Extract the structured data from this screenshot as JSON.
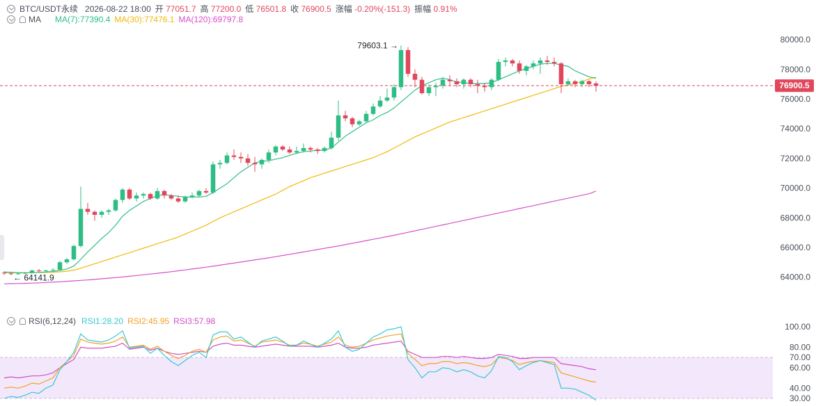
{
  "header": {
    "symbol": "BTC/USDT永续",
    "datetime": "2026-08-22 18:00",
    "open_label": "开",
    "open": "77051.7",
    "high_label": "高",
    "high": "77200.0",
    "low_label": "低",
    "low": "76501.8",
    "close_label": "收",
    "close": "76900.5",
    "change_label": "涨幅",
    "change": "-0.20%(-151.3)",
    "amp_label": "振幅",
    "amp": "0.91%"
  },
  "ma_legend": {
    "label": "MA",
    "ma7": "MA(7):77390.4",
    "ma30": "MA(30):77476.1",
    "ma120": "MA(120):69797.8"
  },
  "rsi_legend": {
    "label": "RSI(6,12,24)",
    "rsi1": "RSI1:28.20",
    "rsi2": "RSI2:45.95",
    "rsi3": "RSI3:57.98"
  },
  "colors": {
    "up": "#2ebd85",
    "down": "#e0475b",
    "ma7": "#2ebd85",
    "ma30": "#f0b90b",
    "ma120": "#d64fc9",
    "rsi1": "#34c9d1",
    "rsi2": "#f0a028",
    "rsi3": "#cf4fc4",
    "band": "#f3e8fb",
    "last_price_bg": "#e0475b"
  },
  "chart_data": [
    {
      "type": "candlestick",
      "ylim": [
        63000,
        80800
      ],
      "yticks": [
        "80000.0",
        "78000.0",
        "76000.0",
        "74000.0",
        "72000.0",
        "70000.0",
        "68000.0",
        "66000.0",
        "64000.0"
      ],
      "last_price": "76900.5",
      "annotations": {
        "high": "79603.1",
        "low": "64141.9"
      },
      "ohlc": [
        [
          64300,
          64400,
          64150,
          64250
        ],
        [
          64250,
          64350,
          64141.9,
          64200
        ],
        [
          64200,
          64300,
          64150,
          64250
        ],
        [
          64250,
          64350,
          64180,
          64300
        ],
        [
          64300,
          64500,
          64250,
          64450
        ],
        [
          64450,
          64550,
          64350,
          64400
        ],
        [
          64400,
          64500,
          64300,
          64450
        ],
        [
          64450,
          64600,
          64400,
          64500
        ],
        [
          64500,
          65100,
          64450,
          65000
        ],
        [
          65000,
          65300,
          64900,
          65200
        ],
        [
          65200,
          66200,
          65100,
          66100
        ],
        [
          66100,
          70100,
          66000,
          68600
        ],
        [
          68600,
          69000,
          68200,
          68400
        ],
        [
          68400,
          68500,
          67800,
          68200
        ],
        [
          68200,
          68500,
          68000,
          68400
        ],
        [
          68400,
          68600,
          68200,
          68500
        ],
        [
          68500,
          69300,
          68400,
          69200
        ],
        [
          69200,
          70000,
          69000,
          69900
        ],
        [
          69900,
          70000,
          69200,
          69300
        ],
        [
          69300,
          69700,
          69100,
          69500
        ],
        [
          69500,
          69700,
          69300,
          69600
        ],
        [
          69600,
          69700,
          69200,
          69300
        ],
        [
          69300,
          70000,
          69200,
          69800
        ],
        [
          69800,
          69900,
          69300,
          69500
        ],
        [
          69500,
          69600,
          69200,
          69300
        ],
        [
          69300,
          69500,
          69000,
          69100
        ],
        [
          69100,
          69500,
          69000,
          69400
        ],
        [
          69400,
          69700,
          69300,
          69500
        ],
        [
          69500,
          69900,
          69400,
          69800
        ],
        [
          69800,
          70000,
          69600,
          69700
        ],
        [
          69700,
          71800,
          69600,
          71600
        ],
        [
          71600,
          71900,
          71300,
          71700
        ],
        [
          71700,
          72400,
          71600,
          72200
        ],
        [
          72200,
          72600,
          71900,
          72100
        ],
        [
          72100,
          72400,
          71700,
          72000
        ],
        [
          72000,
          72300,
          71500,
          71700
        ],
        [
          71700,
          72100,
          71100,
          71600
        ],
        [
          71600,
          72000,
          71300,
          71900
        ],
        [
          71900,
          72600,
          71700,
          72400
        ],
        [
          72400,
          72900,
          72200,
          72800
        ],
        [
          72800,
          72900,
          72500,
          72600
        ],
        [
          72600,
          72800,
          72300,
          72400
        ],
        [
          72400,
          72800,
          72300,
          72500
        ],
        [
          72500,
          73000,
          72400,
          72700
        ],
        [
          72700,
          72800,
          72400,
          72600
        ],
        [
          72600,
          72700,
          72300,
          72500
        ],
        [
          72500,
          72800,
          72400,
          72700
        ],
        [
          72700,
          73800,
          72600,
          73400
        ],
        [
          73400,
          75900,
          73200,
          74900
        ],
        [
          74900,
          75200,
          74500,
          74700
        ],
        [
          74700,
          74800,
          74100,
          74300
        ],
        [
          74300,
          74600,
          74200,
          74500
        ],
        [
          74500,
          75200,
          74400,
          75000
        ],
        [
          75000,
          75700,
          74900,
          75500
        ],
        [
          75500,
          76200,
          75400,
          75900
        ],
        [
          75900,
          76700,
          75800,
          76100
        ],
        [
          76100,
          77000,
          75900,
          76800
        ],
        [
          76800,
          79603.1,
          76600,
          79300
        ],
        [
          79300,
          79500,
          77500,
          77700
        ],
        [
          77700,
          78000,
          76800,
          77300
        ],
        [
          77300,
          77500,
          76300,
          76400
        ],
        [
          76400,
          77000,
          76200,
          76800
        ],
        [
          76800,
          77100,
          76200,
          76900
        ],
        [
          76900,
          77500,
          76700,
          77300
        ],
        [
          77300,
          77600,
          76900,
          77200
        ],
        [
          77200,
          77400,
          76800,
          77000
        ],
        [
          77000,
          77400,
          76700,
          77300
        ],
        [
          77300,
          77400,
          76800,
          77000
        ],
        [
          77000,
          77300,
          76400,
          76900
        ],
        [
          76900,
          77100,
          76500,
          76800
        ],
        [
          76800,
          77400,
          76600,
          77300
        ],
        [
          77300,
          78700,
          77200,
          78500
        ],
        [
          78500,
          78800,
          78200,
          78600
        ],
        [
          78600,
          78700,
          78200,
          78400
        ],
        [
          78400,
          78600,
          77700,
          77900
        ],
        [
          77900,
          78300,
          77600,
          78200
        ],
        [
          78200,
          78600,
          78000,
          78400
        ],
        [
          78400,
          78800,
          77700,
          78600
        ],
        [
          78600,
          78900,
          78300,
          78500
        ],
        [
          78500,
          78800,
          78200,
          78400
        ],
        [
          78400,
          78500,
          76400,
          77000
        ],
        [
          77000,
          77400,
          76900,
          77200
        ],
        [
          77200,
          77300,
          76800,
          77000
        ],
        [
          77000,
          77300,
          76800,
          77200
        ],
        [
          77200,
          77300,
          76800,
          77000
        ],
        [
          77051.7,
          77200,
          76501.8,
          76900.5
        ]
      ],
      "ma7": [
        64350,
        64330,
        64300,
        64280,
        64300,
        64320,
        64350,
        64380,
        64450,
        64550,
        64750,
        65200,
        65700,
        66150,
        66600,
        67000,
        67500,
        68100,
        68500,
        68800,
        69100,
        69300,
        69500,
        69550,
        69500,
        69450,
        69400,
        69400,
        69400,
        69450,
        69700,
        70000,
        70300,
        70700,
        71100,
        71400,
        71700,
        71800,
        71850,
        71950,
        72050,
        72200,
        72350,
        72450,
        72500,
        72550,
        72550,
        72700,
        73100,
        73500,
        73800,
        74100,
        74400,
        74600,
        74900,
        75100,
        75400,
        75800,
        76200,
        76600,
        76900,
        77100,
        77300,
        77400,
        77300,
        77150,
        77100,
        77050,
        77050,
        77050,
        77100,
        77300,
        77500,
        77700,
        77900,
        78050,
        78200,
        78350,
        78400,
        78400,
        78300,
        78200,
        77900,
        77700,
        77500,
        77390.4
      ],
      "ma30": [
        64300,
        64300,
        64300,
        64300,
        64300,
        64310,
        64320,
        64330,
        64360,
        64400,
        64470,
        64600,
        64750,
        64900,
        65050,
        65200,
        65350,
        65500,
        65650,
        65800,
        65950,
        66100,
        66250,
        66400,
        66550,
        66700,
        66900,
        67100,
        67300,
        67500,
        67750,
        68000,
        68200,
        68400,
        68600,
        68800,
        69000,
        69200,
        69400,
        69600,
        69850,
        70100,
        70300,
        70500,
        70700,
        70850,
        71000,
        71150,
        71300,
        71450,
        71600,
        71750,
        71900,
        72050,
        72250,
        72450,
        72700,
        72950,
        73200,
        73450,
        73650,
        73850,
        74050,
        74250,
        74450,
        74600,
        74750,
        74900,
        75050,
        75200,
        75350,
        75500,
        75650,
        75800,
        75950,
        76100,
        76250,
        76400,
        76550,
        76700,
        76850,
        76950,
        77050,
        77200,
        77350,
        77476.1
      ],
      "ma120": [
        63550,
        63560,
        63570,
        63580,
        63600,
        63620,
        63640,
        63660,
        63690,
        63720,
        63750,
        63780,
        63810,
        63850,
        63890,
        63930,
        63970,
        64010,
        64060,
        64110,
        64160,
        64210,
        64260,
        64310,
        64370,
        64430,
        64490,
        64550,
        64610,
        64670,
        64740,
        64810,
        64880,
        64950,
        65020,
        65090,
        65160,
        65230,
        65300,
        65380,
        65460,
        65540,
        65620,
        65700,
        65780,
        65860,
        65940,
        66020,
        66100,
        66190,
        66280,
        66370,
        66460,
        66550,
        66640,
        66730,
        66820,
        66920,
        67020,
        67120,
        67220,
        67320,
        67420,
        67520,
        67620,
        67720,
        67820,
        67920,
        68020,
        68120,
        68220,
        68320,
        68420,
        68520,
        68620,
        68720,
        68820,
        68920,
        69020,
        69120,
        69220,
        69320,
        69420,
        69520,
        69620,
        69797.8
      ]
    },
    {
      "type": "line",
      "title": "RSI(6,12,24)",
      "ylim": [
        28,
        100
      ],
      "yticks": [
        "100.00",
        "80.00",
        "70.00",
        "60.00",
        "40.00",
        "30.00"
      ],
      "band": [
        30,
        70
      ],
      "series": [
        {
          "name": "RSI1",
          "values": [
            30,
            32,
            31,
            33,
            36,
            35,
            40,
            43,
            58,
            66,
            75,
            93,
            87,
            86,
            85,
            87,
            91,
            96,
            79,
            80,
            81,
            74,
            79,
            72,
            66,
            62,
            67,
            72,
            75,
            70,
            92,
            95,
            95,
            88,
            90,
            85,
            80,
            86,
            88,
            90,
            86,
            81,
            82,
            86,
            83,
            80,
            84,
            88,
            96,
            80,
            76,
            78,
            84,
            90,
            93,
            97,
            98,
            100,
            68,
            60,
            50,
            56,
            56,
            60,
            59,
            56,
            58,
            56,
            52,
            50,
            57,
            71,
            70,
            66,
            58,
            62,
            65,
            67,
            65,
            63,
            40,
            40,
            39,
            36,
            33,
            28.2
          ]
        },
        {
          "name": "RSI2",
          "values": [
            40,
            41,
            40,
            42,
            45,
            44,
            47,
            50,
            60,
            66,
            72,
            88,
            85,
            84,
            83,
            84,
            86,
            90,
            80,
            81,
            82,
            78,
            81,
            76,
            72,
            69,
            72,
            76,
            78,
            75,
            87,
            90,
            91,
            86,
            87,
            84,
            81,
            85,
            86,
            87,
            85,
            82,
            82,
            84,
            83,
            81,
            83,
            85,
            90,
            82,
            80,
            81,
            84,
            87,
            89,
            91,
            92,
            93,
            74,
            68,
            62,
            64,
            64,
            66,
            66,
            64,
            65,
            64,
            62,
            61,
            63,
            70,
            69,
            67,
            63,
            65,
            66,
            67,
            66,
            65,
            55,
            53,
            51,
            49,
            47,
            45.95
          ]
        },
        {
          "name": "RSI3",
          "values": [
            50,
            51,
            50,
            51,
            52,
            52,
            53,
            55,
            60,
            64,
            68,
            80,
            79,
            79,
            79,
            80,
            81,
            84,
            78,
            79,
            80,
            77,
            79,
            76,
            74,
            73,
            74,
            75,
            76,
            75,
            81,
            83,
            84,
            82,
            82,
            81,
            80,
            81,
            82,
            83,
            82,
            81,
            81,
            81,
            81,
            80,
            81,
            82,
            84,
            80,
            79,
            79,
            80,
            82,
            83,
            84,
            85,
            86,
            76,
            73,
            70,
            70,
            70,
            71,
            71,
            70,
            71,
            70,
            69,
            69,
            70,
            73,
            72,
            71,
            69,
            69,
            70,
            70,
            70,
            70,
            64,
            63,
            62,
            61,
            59,
            57.98
          ]
        }
      ]
    }
  ]
}
